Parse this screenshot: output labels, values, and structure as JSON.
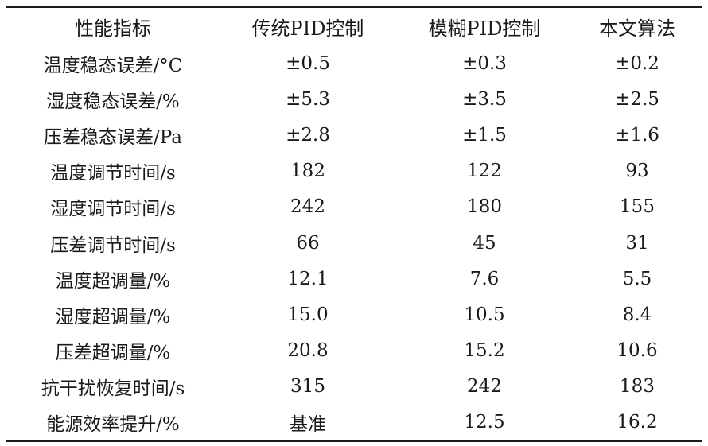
{
  "table": {
    "headers": [
      "性能指标",
      "传统PID控制",
      "模糊PID控制",
      "本文算法"
    ],
    "rows": [
      [
        "温度稳态误差/°C",
        "±0.5",
        "±0.3",
        "±0.2"
      ],
      [
        "湿度稳态误差/%",
        "±5.3",
        "±3.5",
        "±2.5"
      ],
      [
        "压差稳态误差/Pa",
        "±2.8",
        "±1.5",
        "±1.6"
      ],
      [
        "温度调节时间/s",
        "182",
        "122",
        "93"
      ],
      [
        "湿度调节时间/s",
        "242",
        "180",
        "155"
      ],
      [
        "压差调节时间/s",
        "66",
        "45",
        "31"
      ],
      [
        "温度超调量/%",
        "12.1",
        "7.6",
        "5.5"
      ],
      [
        "湿度超调量/%",
        "15.0",
        "10.5",
        "8.4"
      ],
      [
        "压差超调量/%",
        "20.8",
        "15.2",
        "10.6"
      ],
      [
        "抗干扰恢复时间/s",
        "315",
        "242",
        "183"
      ],
      [
        "能源效率提升/%",
        "基准",
        "12.5",
        "16.2"
      ]
    ]
  }
}
